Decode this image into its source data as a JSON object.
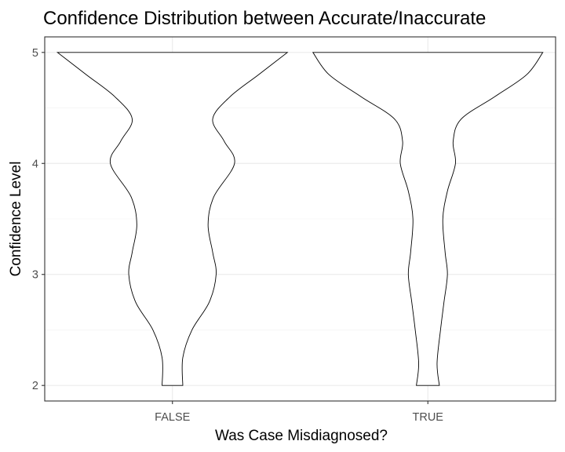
{
  "chart_data": {
    "type": "violin",
    "title": "Confidence Distribution between Accurate/Inaccurate",
    "xlabel": "Was Case Misdiagnosed?",
    "ylabel": "Confidence Level",
    "categories": [
      "FALSE",
      "TRUE"
    ],
    "y_ticks": [
      2,
      3,
      4,
      5
    ],
    "ylim": [
      1.86,
      5.14
    ],
    "grid": true,
    "theme": "bw",
    "colors": {
      "violin_fill": "#ffffff",
      "violin_outline": "#000000",
      "grid": "#ebebeb",
      "panel_border": "#333333"
    },
    "series": [
      {
        "category": "FALSE",
        "density_profile": [
          {
            "y": 2.0,
            "w": 0.09
          },
          {
            "y": 2.25,
            "w": 0.09
          },
          {
            "y": 2.5,
            "w": 0.17
          },
          {
            "y": 2.75,
            "w": 0.32
          },
          {
            "y": 3.0,
            "w": 0.38
          },
          {
            "y": 3.2,
            "w": 0.35
          },
          {
            "y": 3.45,
            "w": 0.31
          },
          {
            "y": 3.7,
            "w": 0.36
          },
          {
            "y": 4.0,
            "w": 0.54
          },
          {
            "y": 4.2,
            "w": 0.45
          },
          {
            "y": 4.4,
            "w": 0.35
          },
          {
            "y": 4.6,
            "w": 0.5
          },
          {
            "y": 4.8,
            "w": 0.75
          },
          {
            "y": 5.0,
            "w": 1.0
          }
        ]
      },
      {
        "category": "TRUE",
        "density_profile": [
          {
            "y": 2.0,
            "w": 0.1
          },
          {
            "y": 2.2,
            "w": 0.08
          },
          {
            "y": 2.5,
            "w": 0.11
          },
          {
            "y": 2.75,
            "w": 0.14
          },
          {
            "y": 3.0,
            "w": 0.17
          },
          {
            "y": 3.2,
            "w": 0.15
          },
          {
            "y": 3.5,
            "w": 0.13
          },
          {
            "y": 3.75,
            "w": 0.17
          },
          {
            "y": 4.0,
            "w": 0.24
          },
          {
            "y": 4.2,
            "w": 0.22
          },
          {
            "y": 4.4,
            "w": 0.29
          },
          {
            "y": 4.6,
            "w": 0.58
          },
          {
            "y": 4.8,
            "w": 0.86
          },
          {
            "y": 5.0,
            "w": 1.0
          }
        ]
      }
    ]
  }
}
